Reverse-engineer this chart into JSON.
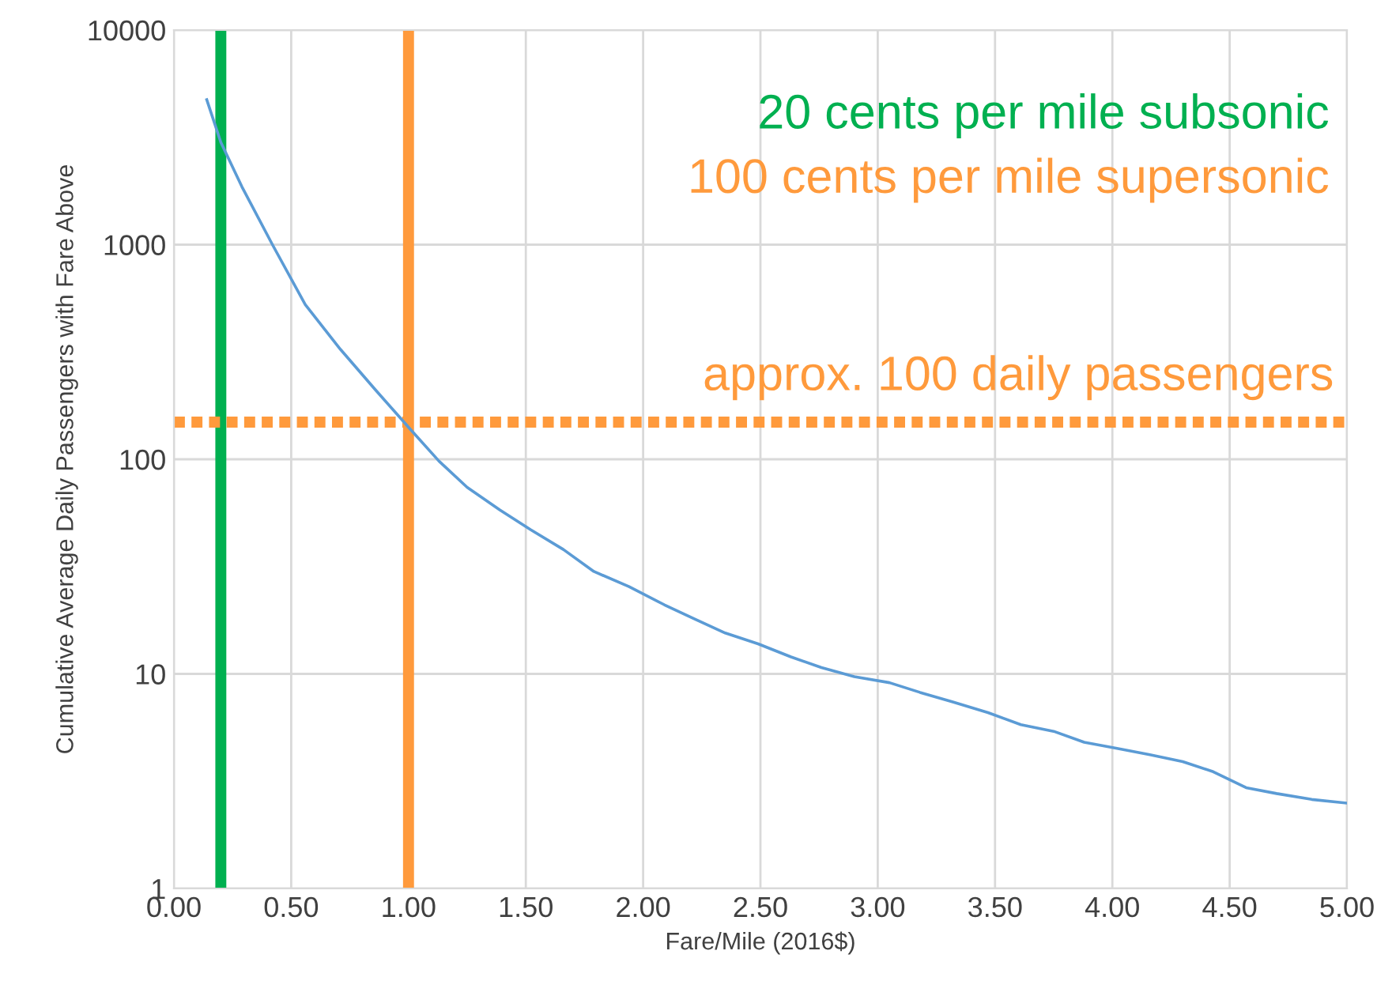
{
  "chart_data": {
    "type": "line",
    "xlabel": "Fare/Mile (2016$)",
    "ylabel": "Cumulative Average Daily Passengers with Fare Above",
    "x": [
      0.14,
      0.2,
      0.29,
      0.42,
      0.56,
      0.71,
      0.86,
      1.0,
      1.13,
      1.25,
      1.39,
      1.52,
      1.66,
      1.79,
      1.94,
      2.09,
      2.22,
      2.35,
      2.49,
      2.63,
      2.76,
      2.9,
      3.05,
      3.18,
      3.32,
      3.47,
      3.61,
      3.75,
      3.88,
      4.02,
      4.16,
      4.3,
      4.43,
      4.57,
      4.7,
      4.85,
      5.0
    ],
    "series": [
      {
        "color": "#5b9bd5",
        "values": [
          4740,
          3000,
          1860,
          1000,
          525,
          325,
          210,
          141,
          98,
          74,
          58,
          47,
          38,
          30,
          25.5,
          21,
          18,
          15.5,
          13.8,
          12,
          10.7,
          9.7,
          9.1,
          8.2,
          7.4,
          6.6,
          5.8,
          5.4,
          4.8,
          4.5,
          4.2,
          3.9,
          3.5,
          2.95,
          2.77,
          2.6,
          2.5
        ]
      }
    ],
    "log": "y",
    "xlim": [
      0,
      5
    ],
    "ylim": [
      1,
      10000
    ],
    "xticks": [
      {
        "value": 0,
        "label": "0.00"
      },
      {
        "value": 0.5,
        "label": "0.50"
      },
      {
        "value": 1,
        "label": "1.00"
      },
      {
        "value": 1.5,
        "label": "1.50"
      },
      {
        "value": 2,
        "label": "2.00"
      },
      {
        "value": 2.5,
        "label": "2.50"
      },
      {
        "value": 3,
        "label": "3.00"
      },
      {
        "value": 3.5,
        "label": "3.50"
      },
      {
        "value": 4,
        "label": "4.00"
      },
      {
        "value": 4.5,
        "label": "4.50"
      },
      {
        "value": 5,
        "label": "5.00"
      }
    ],
    "yticks": [
      1,
      10,
      100,
      1000,
      10000
    ],
    "grid": true,
    "ref_lines": [
      {
        "axis": "x",
        "value": 0.2,
        "label": "20 cents per mile subsonic",
        "color": "#00b050",
        "line_style": "solid"
      },
      {
        "axis": "x",
        "value": 1.0,
        "label": "100 cents per mile supersonic",
        "color": "#ff9a3c",
        "line_style": "solid"
      },
      {
        "axis": "y",
        "value": 149,
        "label": "approx. 100 daily passengers",
        "color": "#ff9a3c",
        "line_style": "dotted"
      }
    ]
  }
}
